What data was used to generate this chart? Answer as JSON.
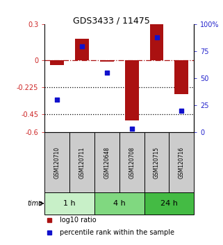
{
  "title": "GDS3433 / 11475",
  "samples": [
    "GSM120710",
    "GSM120711",
    "GSM120648",
    "GSM120708",
    "GSM120715",
    "GSM120716"
  ],
  "time_groups": [
    {
      "label": "1 h",
      "indices": [
        0,
        1
      ],
      "color": "#c8f0c8"
    },
    {
      "label": "4 h",
      "indices": [
        2,
        3
      ],
      "color": "#80d880"
    },
    {
      "label": "24 h",
      "indices": [
        4,
        5
      ],
      "color": "#44bb44"
    }
  ],
  "log10_ratio": [
    -0.04,
    0.18,
    -0.01,
    -0.5,
    0.3,
    -0.28
  ],
  "percentile_rank": [
    30,
    80,
    55,
    3,
    88,
    20
  ],
  "ylim_left": [
    -0.6,
    0.3
  ],
  "yticks_left": [
    0.3,
    0.0,
    -0.225,
    -0.45,
    -0.6
  ],
  "ytick_labels_left": [
    "0.3",
    "0",
    "-0.225",
    "-0.45",
    "-0.6"
  ],
  "ylim_right": [
    0,
    100
  ],
  "yticks_right": [
    100,
    75,
    50,
    25,
    0
  ],
  "ytick_labels_right": [
    "100%",
    "75",
    "50",
    "25",
    "0"
  ],
  "hline_y": 0.0,
  "dotted_lines": [
    -0.225,
    -0.45
  ],
  "bar_color": "#aa1111",
  "dot_color": "#1111cc",
  "bar_width": 0.55,
  "dot_size": 25,
  "sample_bg_color": "#cccccc",
  "ylabel_left_color": "#cc2222",
  "ylabel_right_color": "#2222cc",
  "legend1": "log10 ratio",
  "legend2": "percentile rank within the sample"
}
